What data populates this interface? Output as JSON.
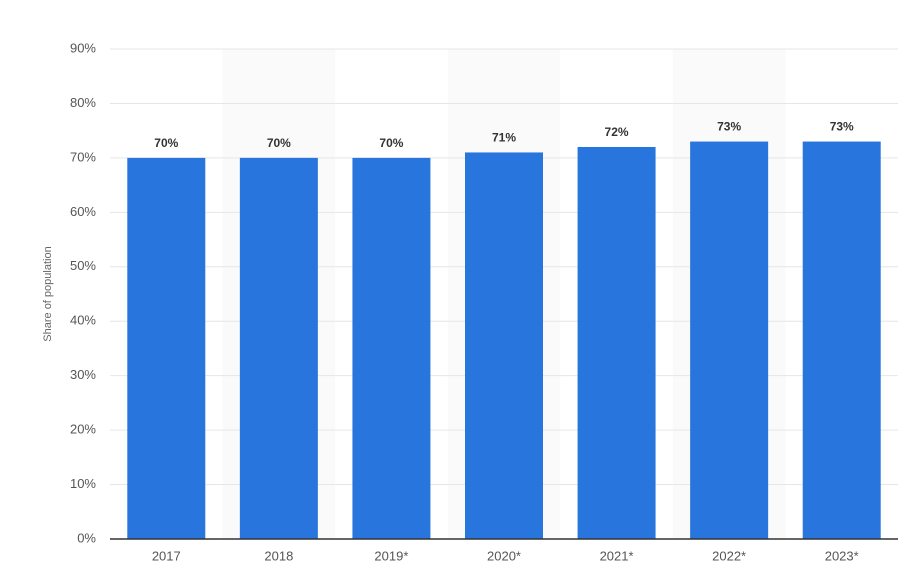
{
  "chart_data": {
    "type": "bar",
    "y_axis_label": "Share of population",
    "categories": [
      "2017",
      "2018",
      "2019*",
      "2020*",
      "2021*",
      "2022*",
      "2023*"
    ],
    "values": [
      70,
      70,
      70,
      71,
      72,
      73,
      73
    ],
    "value_labels": [
      "70%",
      "70%",
      "70%",
      "71%",
      "72%",
      "73%",
      "73%"
    ],
    "color": "#2876dd",
    "ylim": [
      0,
      90
    ],
    "yticks": [
      {
        "value": 0,
        "label": "0%"
      },
      {
        "value": 10,
        "label": "10%"
      },
      {
        "value": 20,
        "label": "20%"
      },
      {
        "value": 30,
        "label": "30%"
      },
      {
        "value": 40,
        "label": "40%"
      },
      {
        "value": 50,
        "label": "50%"
      },
      {
        "value": 60,
        "label": "60%"
      },
      {
        "value": 70,
        "label": "70%"
      },
      {
        "value": 80,
        "label": "80%"
      },
      {
        "value": 90,
        "label": "90%"
      }
    ],
    "grid": true
  }
}
